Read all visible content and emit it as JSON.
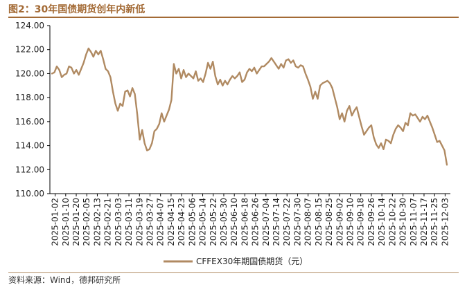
{
  "figure": {
    "title": "图2：30年国债期货创年内新低",
    "source": "资料来源：Wind，德邦研究所",
    "accent_color": "#a36a35"
  },
  "chart_data": {
    "type": "line",
    "title": "图2：30年国债期货创年内新低",
    "xlabel": "",
    "ylabel": "",
    "ylim": [
      110,
      124
    ],
    "yticks": [
      "110.00",
      "112.00",
      "114.00",
      "116.00",
      "118.00",
      "120.00",
      "122.00",
      "124.00"
    ],
    "xticks": [
      "2025-01-02",
      "2025-01-10",
      "2025-01-20",
      "2025-02-05",
      "2025-02-13",
      "2025-02-21",
      "2025-03-03",
      "2025-03-11",
      "2025-03-19",
      "2025-03-27",
      "2025-04-07",
      "2025-04-15",
      "2025-04-23",
      "2025-05-06",
      "2025-05-14",
      "2025-05-22",
      "2025-05-30",
      "2025-06-10",
      "2025-06-18",
      "2025-06-26",
      "2025-07-04",
      "2025-07-14",
      "2025-07-22",
      "2025-07-30",
      "2025-08-07",
      "2025-08-15",
      "2025-08-25",
      "2025-09-02",
      "2025-09-10",
      "2025-09-18",
      "2025-09-26",
      "2025-10-14",
      "2025-10-22",
      "2025-10-30",
      "2025-11-07",
      "2025-11-17",
      "2025-11-25",
      "2025-12-03"
    ],
    "legend": {
      "position": "bottom",
      "label": "CFFEX30年期国债期货（元）"
    },
    "grid": false,
    "series": [
      {
        "name": "CFFEX30年期国债期货（元）",
        "color": "#b08a62",
        "values": [
          120.0,
          120.1,
          120.6,
          120.3,
          119.7,
          119.9,
          120.0,
          120.6,
          120.5,
          120.0,
          120.3,
          119.9,
          120.4,
          120.9,
          121.6,
          122.1,
          121.8,
          121.4,
          121.9,
          121.6,
          121.9,
          121.2,
          120.4,
          120.2,
          119.7,
          118.5,
          117.5,
          116.9,
          117.5,
          117.3,
          118.5,
          118.6,
          118.1,
          118.8,
          118.3,
          116.6,
          114.5,
          115.3,
          114.2,
          113.6,
          113.7,
          114.2,
          115.2,
          115.4,
          115.8,
          116.7,
          116.0,
          116.5,
          117.0,
          117.8,
          120.8,
          120.0,
          120.4,
          119.6,
          120.3,
          119.7,
          120.0,
          119.8,
          119.6,
          120.2,
          119.4,
          119.6,
          119.3,
          120.0,
          120.9,
          120.4,
          121.0,
          119.8,
          119.1,
          119.5,
          119.0,
          119.4,
          119.1,
          119.5,
          119.8,
          119.6,
          119.8,
          120.1,
          119.3,
          119.5,
          120.1,
          120.4,
          120.2,
          120.5,
          120.0,
          120.3,
          120.6,
          120.6,
          120.8,
          121.0,
          121.3,
          121.0,
          120.7,
          120.4,
          120.8,
          120.5,
          121.1,
          121.2,
          120.9,
          121.1,
          120.6,
          120.5,
          120.7,
          120.6,
          120.0,
          119.5,
          118.9,
          117.9,
          118.5,
          117.9,
          119.0,
          119.2,
          119.3,
          119.4,
          119.2,
          118.8,
          118.0,
          117.2,
          116.2,
          116.7,
          116.0,
          116.9,
          117.3,
          116.5,
          116.9,
          117.2,
          116.4,
          115.6,
          114.9,
          115.2,
          115.5,
          115.7,
          114.7,
          114.1,
          113.8,
          114.2,
          113.7,
          114.5,
          114.4,
          114.2,
          114.9,
          115.4,
          115.7,
          115.5,
          115.2,
          115.9,
          115.7,
          116.7,
          116.5,
          116.6,
          116.3,
          116.0,
          116.4,
          116.2,
          116.5,
          116.0,
          115.5,
          114.9,
          114.3,
          114.4,
          114.0,
          113.6,
          112.4
        ]
      }
    ]
  }
}
